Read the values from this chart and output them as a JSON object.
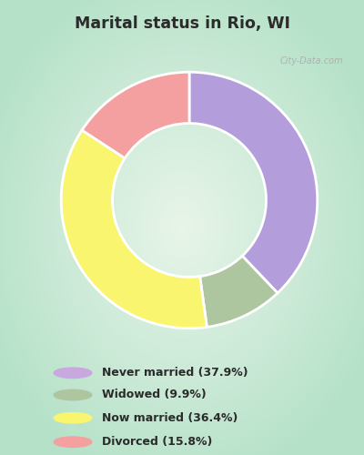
{
  "title": "Marital status in Rio, WI",
  "title_color": "#2b2b2b",
  "bg_outer": "#b2dfdb",
  "bg_inner": "#e8f5e9",
  "wedge_colors": [
    "#b39ddb",
    "#aec6a0",
    "#f9f56e",
    "#f4a0a0"
  ],
  "labels": [
    "Never married (37.9%)",
    "Widowed (9.9%)",
    "Now married (36.4%)",
    "Divorced (15.8%)"
  ],
  "values": [
    37.9,
    9.9,
    36.4,
    15.8
  ],
  "legend_dot_colors": [
    "#c9a8e0",
    "#aec6a0",
    "#f9f56e",
    "#f4a0a0"
  ],
  "legend_text_color": "#2b2b2b",
  "watermark": "City-Data.com",
  "watermark_color": "#aaaaaa"
}
